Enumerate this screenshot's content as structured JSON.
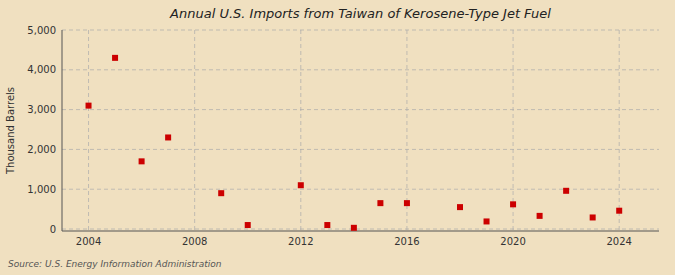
{
  "chart_data": {
    "type": "scatter",
    "title": "Annual U.S. Imports from Taiwan of Kerosene-Type Jet Fuel",
    "y_label": "Thousand Barrels",
    "annotations": [
      "Source: U.S. Energy Information Administration"
    ],
    "x": [
      2004,
      2005,
      2006,
      2007,
      2009,
      2010,
      2012,
      2013,
      2014,
      2015,
      2016,
      2018,
      2019,
      2020,
      2021,
      2022,
      2023,
      2024
    ],
    "values": [
      3100,
      4300,
      1700,
      2300,
      900,
      100,
      1100,
      100,
      30,
      650,
      650,
      550,
      190,
      620,
      330,
      960,
      290,
      460
    ],
    "color": "#cc0000",
    "marker": "square",
    "xlim": [
      2003.0,
      2025.5
    ],
    "ylim": [
      -50,
      5000
    ],
    "xticks": [
      2004,
      2008,
      2012,
      2016,
      2020,
      2024
    ],
    "yticks": [
      0,
      {
        "value": 1000,
        "label": "1,000"
      },
      {
        "value": 2000,
        "label": "2,000"
      },
      {
        "value": 3000,
        "label": "3,000"
      },
      {
        "value": 4000,
        "label": "4,000"
      },
      {
        "value": 5000,
        "label": "5,000"
      }
    ],
    "grid": true
  }
}
